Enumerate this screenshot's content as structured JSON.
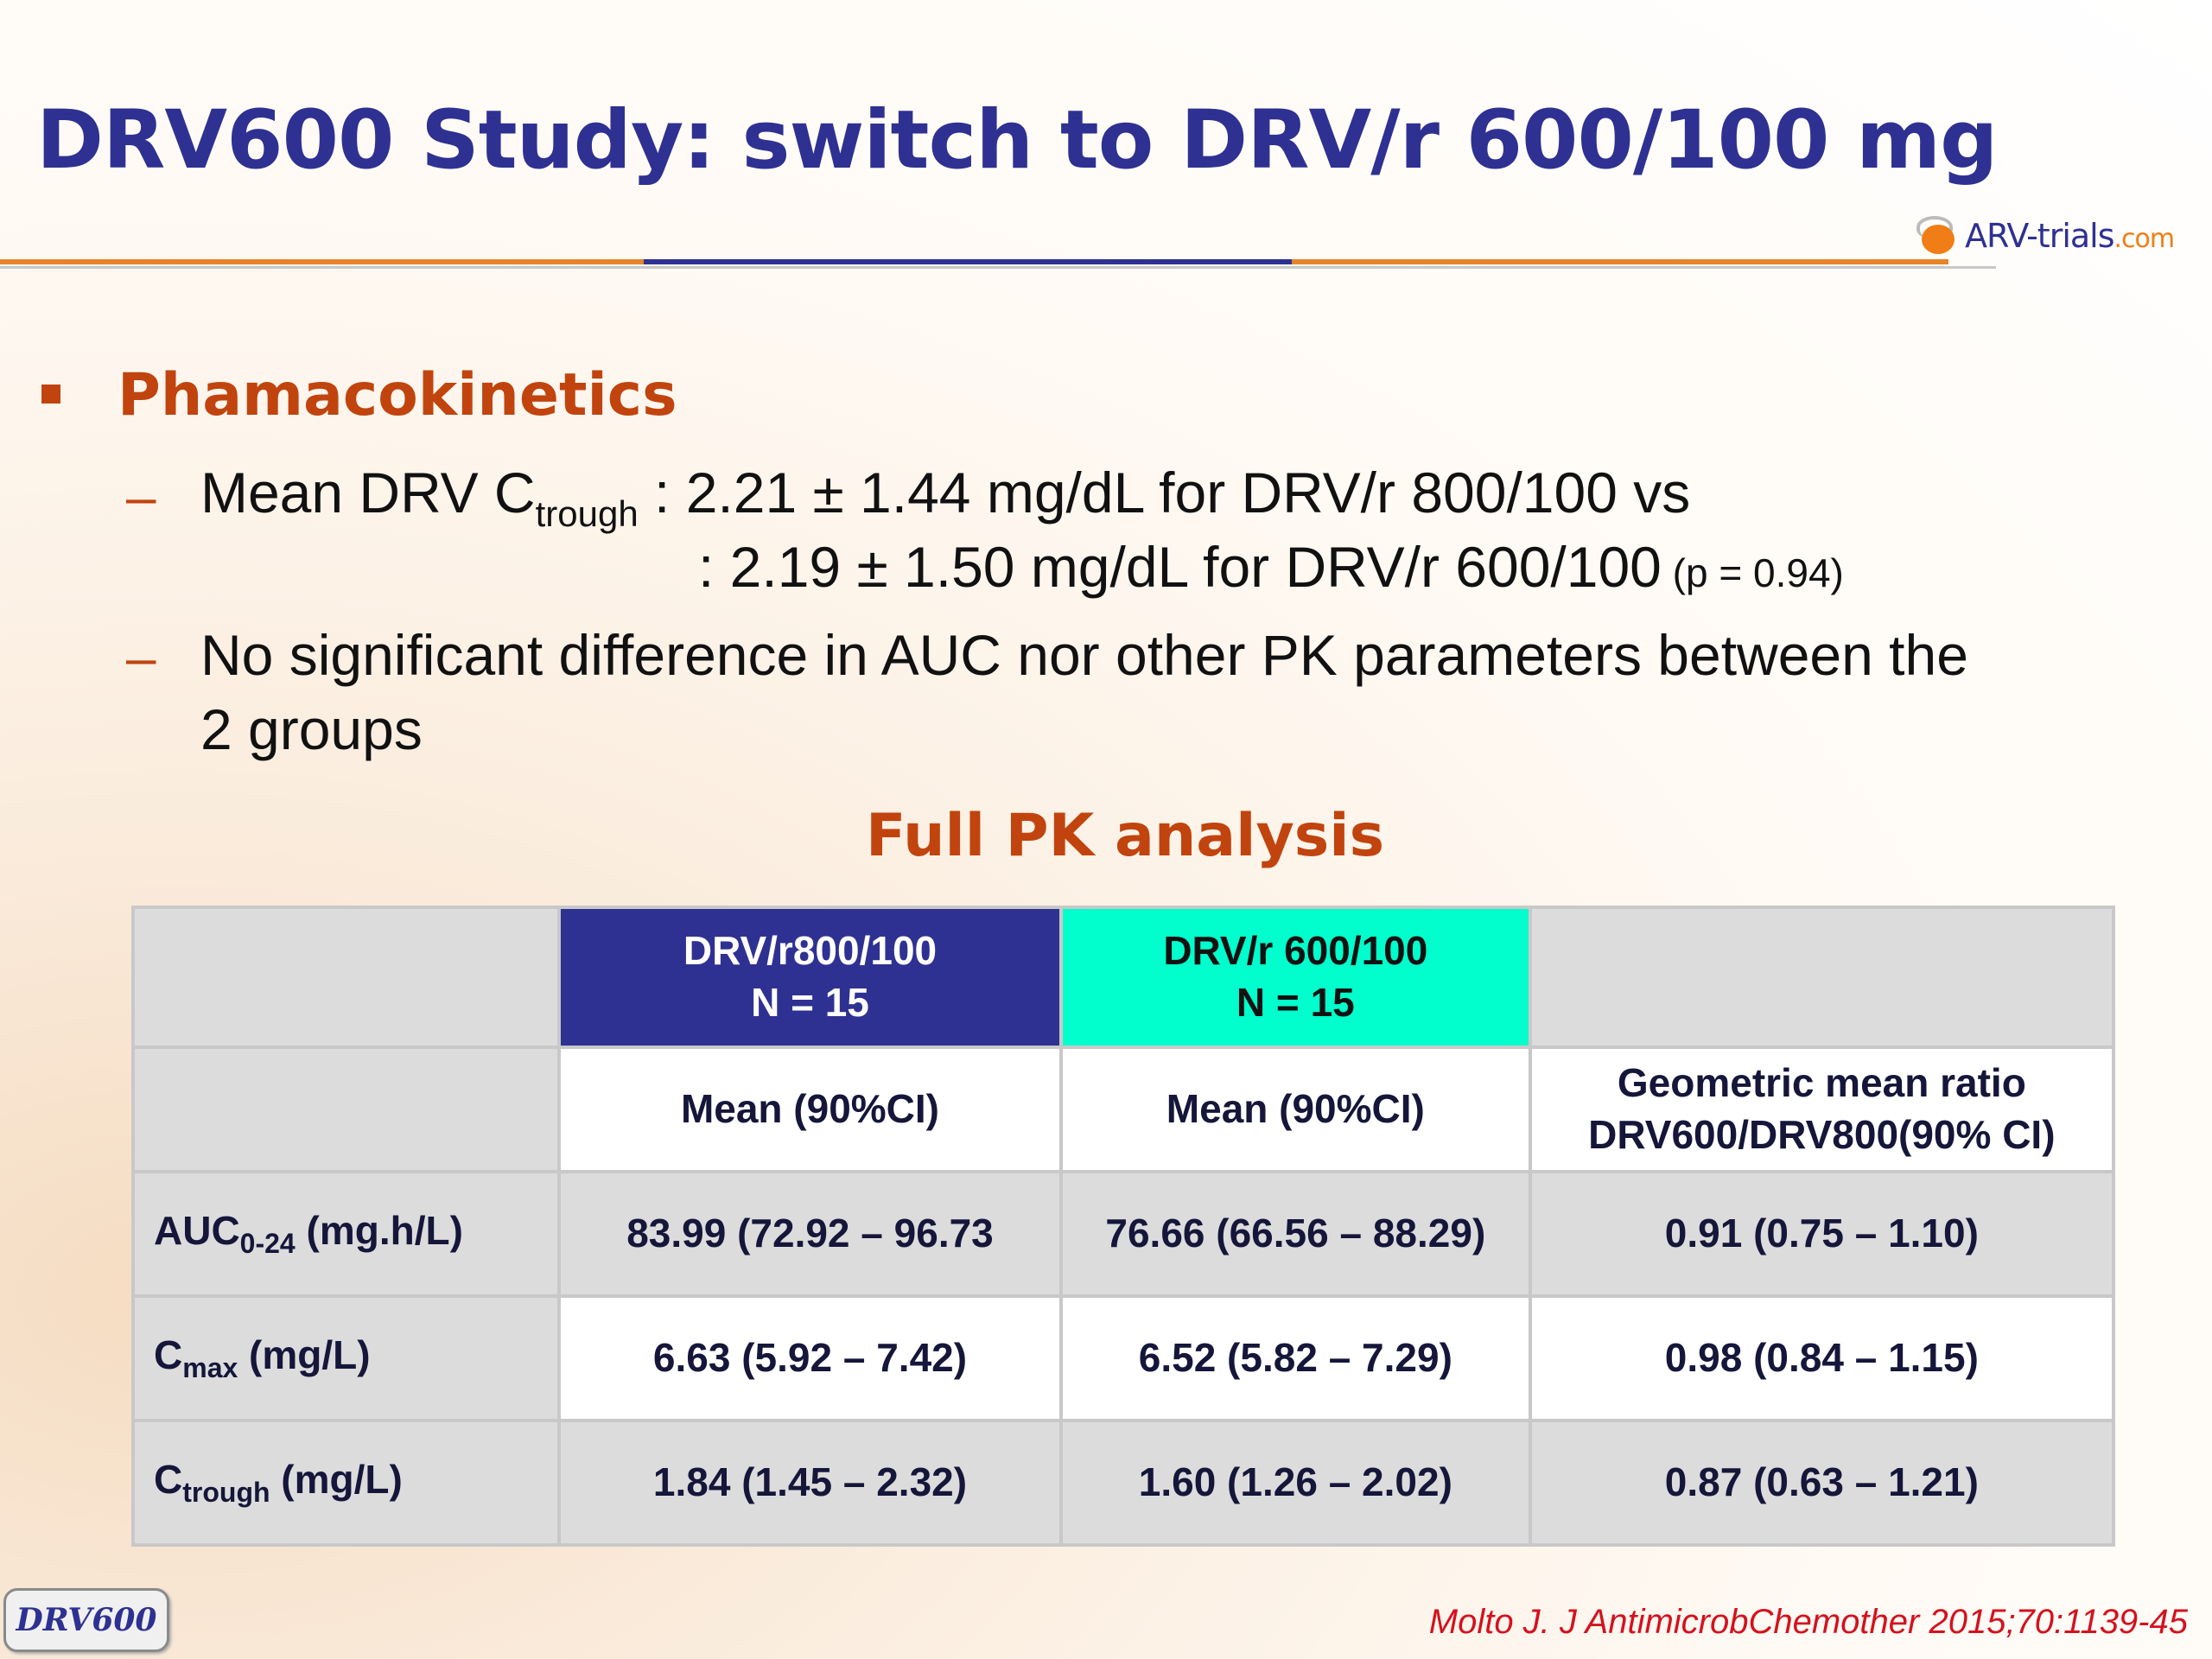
{
  "title": "DRV600 Study: switch to DRV/r 600/100 mg",
  "logo": {
    "name": "ARV-trials",
    "domain": ".com"
  },
  "section_heading": "Phamacokinetics",
  "bullets": {
    "b1_prefix": "Mean DRV C",
    "b1_sub": "trough",
    "b1_line1": " : 2.21 ± 1.44 mg/dL for DRV/r 800/100 vs",
    "b1_line2": ": 2.19 ± 1.50 mg/dL for DRV/r 600/100",
    "b1_p": " (p = 0.94)",
    "b2_line1": "No significant difference in AUC nor other PK parameters between the",
    "b2_line2": "2 groups"
  },
  "table_title": "Full PK analysis",
  "table": {
    "col_drv800_line1": "DRV/r800/100",
    "col_drv800_line2": "N = 15",
    "col_drv600_line1": "DRV/r 600/100",
    "col_drv600_line2": "N = 15",
    "sub_mean_800": "Mean (90%CI)",
    "sub_mean_600": "Mean (90%CI)",
    "sub_ratio_line1": "Geometric mean ratio",
    "sub_ratio_line2": "DRV600/DRV800(90% CI)",
    "rows": [
      {
        "label_main": "AUC",
        "label_sub": "0-24",
        "label_unit": " (mg.h/L)",
        "drv800": "83.99 (72.92 – 96.73",
        "drv600": "76.66 (66.56 – 88.29)",
        "ratio": "0.91 (0.75 – 1.10)"
      },
      {
        "label_main": "C",
        "label_sub": "max",
        "label_unit": " (mg/L)",
        "drv800": "6.63 (5.92 – 7.42)",
        "drv600": "6.52 (5.82 – 7.29)",
        "ratio": "0.98 (0.84 – 1.15)"
      },
      {
        "label_main": "C",
        "label_sub": "trough",
        "label_unit": " (mg/L)",
        "drv800": "1.84 (1.45 – 2.32)",
        "drv600": "1.60 (1.26 – 2.02)",
        "ratio": "0.87 (0.63 – 1.21)"
      }
    ]
  },
  "footer": {
    "badge": "DRV600",
    "citation": "Molto J. J AntimicrobChemother 2015;70:1139-45"
  },
  "colors": {
    "title_blue": "#2e3192",
    "accent_orange": "#c1440e",
    "drv800_header": "#2e3192",
    "drv600_header": "#00ffcc",
    "citation_red": "#d4121e"
  }
}
